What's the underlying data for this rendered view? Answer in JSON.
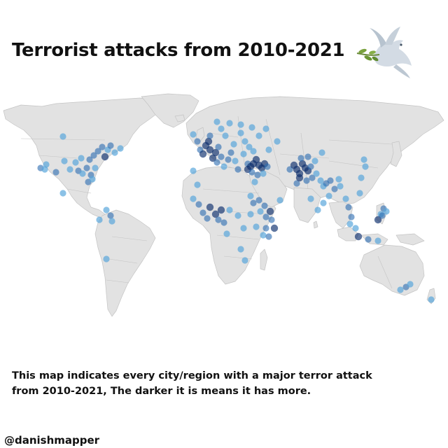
{
  "title": "Terrorist attacks from 2010-2021",
  "caption": {
    "line1": "This map indicates every city/region with a major terror attack",
    "line2": "from 2010-2021, The darker it is means it has more."
  },
  "credit": "@danishmapper",
  "logo": {
    "icon": "dove-with-olive-branch-icon"
  },
  "colors": {
    "land": "#e2e2e2",
    "borders": "#c4c4c4",
    "marker_light": "#5aa6dc",
    "marker_mid": "#2a6bb0",
    "marker_dark": "#0b2c6b",
    "text": "#111111"
  },
  "legend_scale": "The darker it is means it has more"
}
